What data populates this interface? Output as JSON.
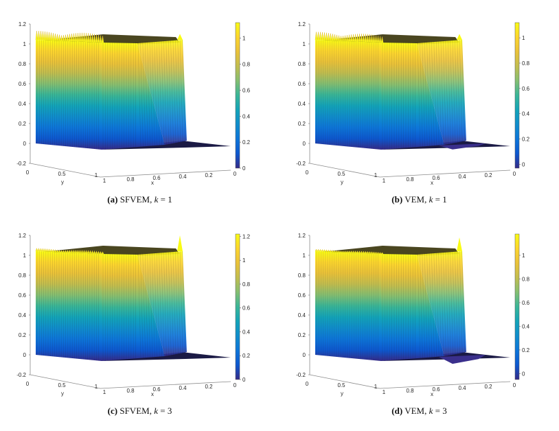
{
  "chart_data": [
    {
      "type": "surface",
      "panel_id": "a",
      "caption": {
        "tag": "(a)",
        "method": "SFVEM",
        "k_label": "k",
        "eq": " = ",
        "k_value": "1"
      },
      "z_ticks": [
        "-0.2",
        "0",
        "0.2",
        "0.4",
        "0.6",
        "0.8",
        "1",
        "1.2"
      ],
      "zlim": [
        -0.2,
        1.2
      ],
      "x_ticks": [
        "1",
        "0.8",
        "0.6",
        "0.4",
        "0.2",
        "0"
      ],
      "y_ticks": [
        "0",
        "0.5",
        "1"
      ],
      "xlabel": "x",
      "ylabel": "y",
      "colorbar_ticks": [
        "0",
        "0.2",
        "0.4",
        "0.6",
        "0.8",
        "1"
      ],
      "colorbar_range": [
        0,
        1.12
      ],
      "front_plateau_height": 1.0,
      "front_oscillation_amplitude": 0.09,
      "front_undershoot": 0.0,
      "ridge_peak": 1.1
    },
    {
      "type": "surface",
      "panel_id": "b",
      "caption": {
        "tag": "(b)",
        "method": "VEM",
        "k_label": "k",
        "eq": " = ",
        "k_value": "1"
      },
      "z_ticks": [
        "-0.2",
        "0",
        "0.2",
        "0.4",
        "0.6",
        "0.8",
        "1",
        "1.2"
      ],
      "zlim": [
        -0.2,
        1.2
      ],
      "x_ticks": [
        "1",
        "0.8",
        "0.6",
        "0.4",
        "0.2",
        "0"
      ],
      "y_ticks": [
        "0",
        "0.5",
        "1"
      ],
      "xlabel": "x",
      "ylabel": "y",
      "colorbar_ticks": [
        "0",
        "0.2",
        "0.4",
        "0.6",
        "0.8",
        "1"
      ],
      "colorbar_range": [
        -0.03,
        1.12
      ],
      "front_plateau_height": 1.0,
      "front_oscillation_amplitude": 0.08,
      "front_undershoot": -0.04,
      "ridge_peak": 1.1
    },
    {
      "type": "surface",
      "panel_id": "c",
      "caption": {
        "tag": "(c)",
        "method": "SFVEM",
        "k_label": "k",
        "eq": " = ",
        "k_value": "3"
      },
      "z_ticks": [
        "-0.2",
        "0",
        "0.2",
        "0.4",
        "0.6",
        "0.8",
        "1",
        "1.2"
      ],
      "zlim": [
        -0.2,
        1.2
      ],
      "x_ticks": [
        "1",
        "0.8",
        "0.6",
        "0.4",
        "0.2",
        "0"
      ],
      "y_ticks": [
        "0",
        "0.5",
        "1"
      ],
      "xlabel": "x",
      "ylabel": "y",
      "colorbar_ticks": [
        "0",
        "0.2",
        "0.4",
        "0.6",
        "0.8",
        "1",
        "1.2"
      ],
      "colorbar_range": [
        0,
        1.22
      ],
      "front_plateau_height": 1.0,
      "front_oscillation_amplitude": 0.03,
      "front_undershoot": 0.0,
      "ridge_peak": 1.2
    },
    {
      "type": "surface",
      "panel_id": "d",
      "caption": {
        "tag": "(d)",
        "method": "VEM",
        "k_label": "k",
        "eq": " = ",
        "k_value": "3"
      },
      "z_ticks": [
        "-0.2",
        "0",
        "0.2",
        "0.4",
        "0.6",
        "0.8",
        "1",
        "1.2"
      ],
      "zlim": [
        -0.2,
        1.2
      ],
      "x_ticks": [
        "1",
        "0.8",
        "0.6",
        "0.4",
        "0.2",
        "0"
      ],
      "y_ticks": [
        "0",
        "0.5",
        "1"
      ],
      "xlabel": "x",
      "ylabel": "y",
      "colorbar_ticks": [
        "0",
        "0.2",
        "0.4",
        "0.6",
        "0.8",
        "1"
      ],
      "colorbar_range": [
        -0.05,
        1.18
      ],
      "front_plateau_height": 1.0,
      "front_oscillation_amplitude": 0.02,
      "front_undershoot": -0.07,
      "ridge_peak": 1.18
    }
  ]
}
